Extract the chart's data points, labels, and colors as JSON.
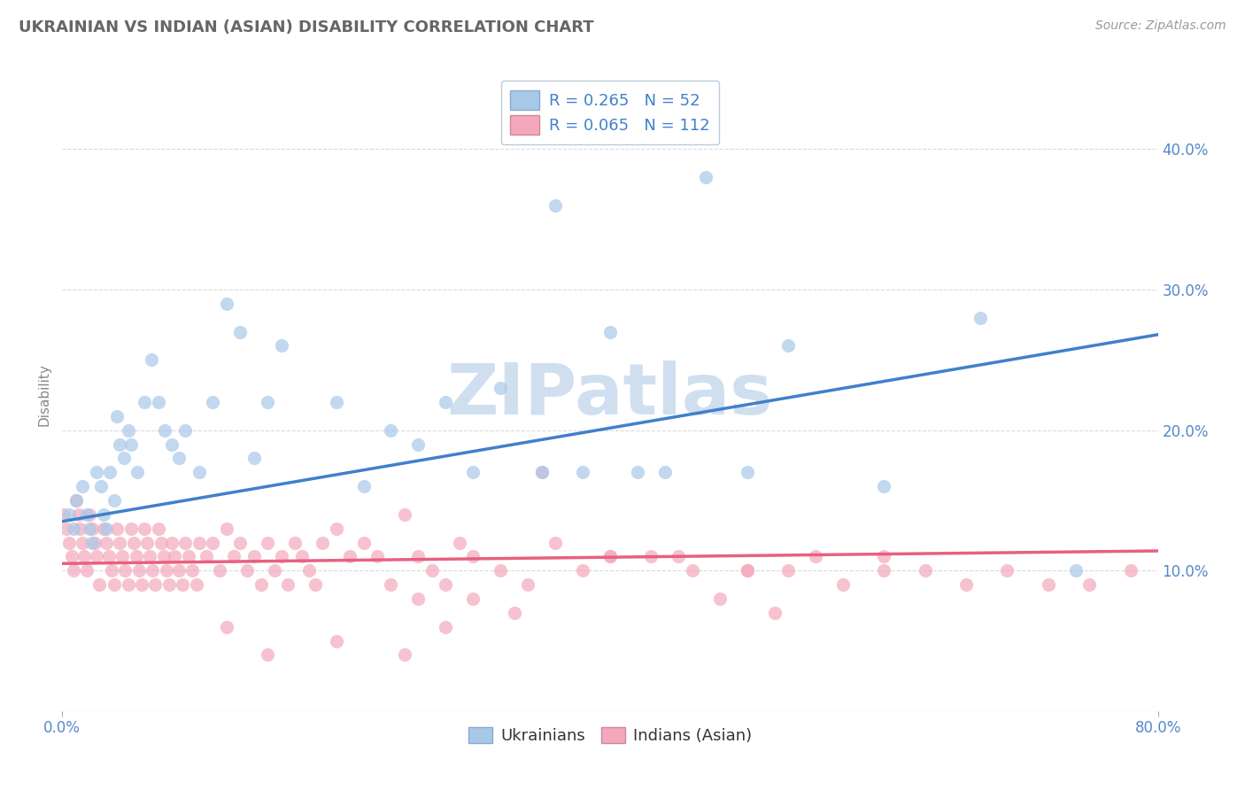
{
  "title": "UKRAINIAN VS INDIAN (ASIAN) DISABILITY CORRELATION CHART",
  "source": "Source: ZipAtlas.com",
  "ylabel": "Disability",
  "xlim": [
    0.0,
    0.8
  ],
  "ylim": [
    0.0,
    0.45
  ],
  "yticks": [
    0.1,
    0.2,
    0.3,
    0.4
  ],
  "ytick_labels": [
    "10.0%",
    "20.0%",
    "30.0%",
    "40.0%"
  ],
  "xtick_positions": [
    0.0,
    0.8
  ],
  "xtick_labels": [
    "0.0%",
    "80.0%"
  ],
  "blue_R": 0.265,
  "blue_N": 52,
  "pink_R": 0.065,
  "pink_N": 112,
  "blue_color": "#A8C8E8",
  "pink_color": "#F4A8BC",
  "blue_line_color": "#4080CC",
  "pink_line_color": "#E86080",
  "background_color": "#FFFFFF",
  "grid_color": "#CCCCCC",
  "title_color": "#666666",
  "watermark": "ZIPatlas",
  "watermark_color": "#D0DFF0",
  "blue_line_y0": 0.135,
  "blue_line_y1": 0.268,
  "pink_line_y0": 0.105,
  "pink_line_y1": 0.114,
  "blue_scatter_x": [
    0.005,
    0.008,
    0.01,
    0.015,
    0.018,
    0.02,
    0.022,
    0.025,
    0.028,
    0.03,
    0.032,
    0.035,
    0.038,
    0.04,
    0.042,
    0.045,
    0.048,
    0.05,
    0.055,
    0.06,
    0.065,
    0.07,
    0.075,
    0.08,
    0.085,
    0.09,
    0.1,
    0.11,
    0.12,
    0.13,
    0.14,
    0.15,
    0.16,
    0.2,
    0.22,
    0.24,
    0.26,
    0.28,
    0.3,
    0.32,
    0.35,
    0.38,
    0.4,
    0.44,
    0.47,
    0.5,
    0.53,
    0.6,
    0.67,
    0.74,
    0.36,
    0.42
  ],
  "blue_scatter_y": [
    0.14,
    0.13,
    0.15,
    0.16,
    0.14,
    0.13,
    0.12,
    0.17,
    0.16,
    0.14,
    0.13,
    0.17,
    0.15,
    0.21,
    0.19,
    0.18,
    0.2,
    0.19,
    0.17,
    0.22,
    0.25,
    0.22,
    0.2,
    0.19,
    0.18,
    0.2,
    0.17,
    0.22,
    0.29,
    0.27,
    0.18,
    0.22,
    0.26,
    0.22,
    0.16,
    0.2,
    0.19,
    0.22,
    0.17,
    0.23,
    0.17,
    0.17,
    0.27,
    0.17,
    0.38,
    0.17,
    0.26,
    0.16,
    0.28,
    0.1,
    0.36,
    0.17
  ],
  "pink_scatter_x": [
    0.001,
    0.003,
    0.005,
    0.007,
    0.008,
    0.01,
    0.012,
    0.013,
    0.015,
    0.016,
    0.018,
    0.02,
    0.022,
    0.024,
    0.025,
    0.027,
    0.03,
    0.032,
    0.034,
    0.036,
    0.038,
    0.04,
    0.042,
    0.044,
    0.046,
    0.048,
    0.05,
    0.052,
    0.054,
    0.056,
    0.058,
    0.06,
    0.062,
    0.064,
    0.066,
    0.068,
    0.07,
    0.072,
    0.074,
    0.076,
    0.078,
    0.08,
    0.082,
    0.085,
    0.088,
    0.09,
    0.092,
    0.095,
    0.098,
    0.1,
    0.105,
    0.11,
    0.115,
    0.12,
    0.125,
    0.13,
    0.135,
    0.14,
    0.145,
    0.15,
    0.155,
    0.16,
    0.165,
    0.17,
    0.175,
    0.18,
    0.185,
    0.19,
    0.2,
    0.21,
    0.22,
    0.23,
    0.24,
    0.25,
    0.26,
    0.27,
    0.28,
    0.29,
    0.3,
    0.32,
    0.34,
    0.36,
    0.38,
    0.4,
    0.43,
    0.46,
    0.5,
    0.53,
    0.57,
    0.6,
    0.63,
    0.66,
    0.69,
    0.72,
    0.75,
    0.78,
    0.35,
    0.4,
    0.45,
    0.5,
    0.3,
    0.26,
    0.55,
    0.6,
    0.48,
    0.52,
    0.28,
    0.33,
    0.2,
    0.25,
    0.15,
    0.12
  ],
  "pink_scatter_y": [
    0.14,
    0.13,
    0.12,
    0.11,
    0.1,
    0.15,
    0.14,
    0.13,
    0.12,
    0.11,
    0.1,
    0.14,
    0.13,
    0.12,
    0.11,
    0.09,
    0.13,
    0.12,
    0.11,
    0.1,
    0.09,
    0.13,
    0.12,
    0.11,
    0.1,
    0.09,
    0.13,
    0.12,
    0.11,
    0.1,
    0.09,
    0.13,
    0.12,
    0.11,
    0.1,
    0.09,
    0.13,
    0.12,
    0.11,
    0.1,
    0.09,
    0.12,
    0.11,
    0.1,
    0.09,
    0.12,
    0.11,
    0.1,
    0.09,
    0.12,
    0.11,
    0.12,
    0.1,
    0.13,
    0.11,
    0.12,
    0.1,
    0.11,
    0.09,
    0.12,
    0.1,
    0.11,
    0.09,
    0.12,
    0.11,
    0.1,
    0.09,
    0.12,
    0.13,
    0.11,
    0.12,
    0.11,
    0.09,
    0.14,
    0.11,
    0.1,
    0.09,
    0.12,
    0.11,
    0.1,
    0.09,
    0.12,
    0.1,
    0.11,
    0.11,
    0.1,
    0.1,
    0.1,
    0.09,
    0.11,
    0.1,
    0.09,
    0.1,
    0.09,
    0.09,
    0.1,
    0.17,
    0.11,
    0.11,
    0.1,
    0.08,
    0.08,
    0.11,
    0.1,
    0.08,
    0.07,
    0.06,
    0.07,
    0.05,
    0.04,
    0.04,
    0.06
  ]
}
